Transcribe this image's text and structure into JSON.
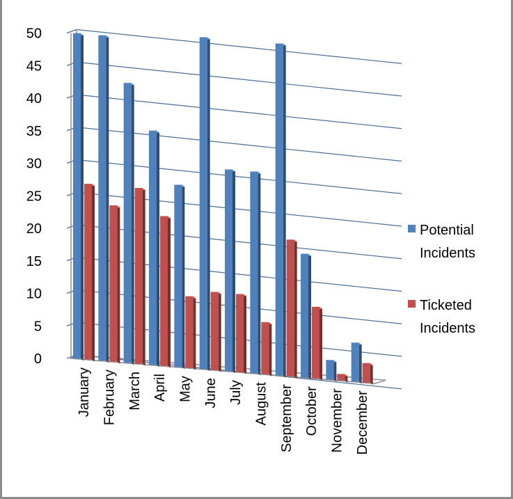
{
  "chart_data": {
    "type": "bar",
    "title": "",
    "xlabel": "",
    "ylabel": "",
    "ylim": [
      0,
      50
    ],
    "y_ticks": [
      0,
      5,
      10,
      15,
      20,
      25,
      30,
      35,
      40,
      45,
      50
    ],
    "grid": true,
    "legend_position": "right",
    "categories": [
      "January",
      "February",
      "March",
      "April",
      "May",
      "June",
      "July",
      "August",
      "September",
      "October",
      "November",
      "December"
    ],
    "series": [
      {
        "name": "Potential Incidents",
        "color": "#4f81bd",
        "values": [
          50,
          50,
          43,
          36,
          28,
          51,
          31,
          31,
          51,
          19,
          3,
          6
        ]
      },
      {
        "name": "Ticketed Incidents",
        "color": "#c0504d",
        "values": [
          27,
          24,
          27,
          23,
          11,
          12,
          12,
          8,
          21,
          11,
          1,
          3
        ]
      }
    ],
    "legend": [
      {
        "lines": [
          "Potential",
          "Incidents"
        ],
        "color": "#4f81bd"
      },
      {
        "lines": [
          "Ticketed",
          "Incidents"
        ],
        "color": "#c0504d"
      }
    ]
  }
}
